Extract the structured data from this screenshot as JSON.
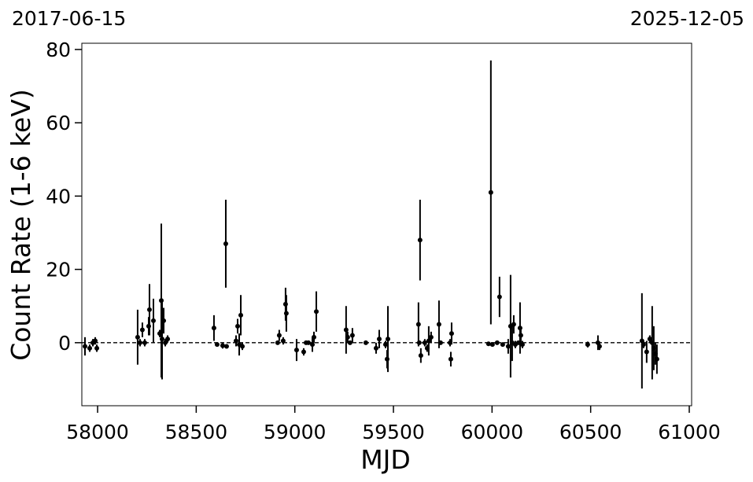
{
  "chart_data": {
    "type": "errorbar",
    "date_start": "2017-06-15",
    "date_end": "2025-12-05",
    "xlabel": "MJD",
    "ylabel": "Count Rate (1-6 keV)",
    "color": "#000000",
    "x": [
      57936,
      57960,
      57976,
      57988,
      57996,
      58203,
      58215,
      58227,
      58239,
      58259,
      58263,
      58283,
      58315,
      58323,
      58327,
      58335,
      58343,
      58355,
      58590,
      58606,
      58634,
      58650,
      58654,
      58702,
      58710,
      58718,
      58726,
      58734,
      58913,
      58921,
      58941,
      58953,
      58957,
      59009,
      59045,
      59057,
      59069,
      59089,
      59097,
      59109,
      59260,
      59268,
      59280,
      59292,
      59360,
      59412,
      59428,
      59460,
      59468,
      59472,
      59627,
      59631,
      59635,
      59639,
      59659,
      59671,
      59679,
      59691,
      59731,
      59739,
      59787,
      59791,
      59795,
      59982,
      59994,
      60002,
      60026,
      60038,
      60054,
      60082,
      60094,
      60102,
      60110,
      60118,
      60134,
      60142,
      60146,
      60154,
      60485,
      60537,
      60545,
      60760,
      60768,
      60784,
      60800,
      60812,
      60820,
      60828,
      60836
    ],
    "values": [
      -1,
      -1.5,
      0,
      0.5,
      -1.5,
      1.5,
      0,
      3.5,
      0,
      4.5,
      9,
      6,
      2.5,
      11.5,
      1,
      6,
      0,
      1,
      4,
      -0.5,
      -0.8,
      27,
      -1,
      0.5,
      4.5,
      -0.5,
      7.5,
      -1,
      0,
      2,
      0.5,
      10.5,
      8,
      -2,
      -2.5,
      0,
      0,
      -0.5,
      1.5,
      8.5,
      3.5,
      1.5,
      0,
      2,
      0,
      -1.5,
      1,
      -0.5,
      -4.5,
      1,
      5,
      0,
      28,
      -3.5,
      0,
      -1.5,
      0.5,
      1.5,
      5,
      0,
      0,
      -4.5,
      2.5,
      -0.3,
      41,
      -0.5,
      0,
      12.5,
      -0.5,
      -1,
      4.5,
      0,
      5,
      -0.5,
      0,
      4,
      2,
      -0.5,
      -0.5,
      0,
      -1,
      0.5,
      -0.5,
      -2.5,
      1,
      0,
      -1.5,
      -3,
      -4.5
    ],
    "errors": [
      2.5,
      1,
      1,
      1,
      1,
      7.5,
      1,
      2,
      1,
      2.5,
      7,
      6,
      1,
      21,
      11,
      3.5,
      1,
      1,
      3.5,
      0.5,
      0.8,
      12,
      0.5,
      1.5,
      2,
      3,
      5.5,
      1,
      0.5,
      1.5,
      1,
      4.5,
      5,
      3,
      1,
      0.5,
      0.5,
      2,
      1.5,
      5.5,
      6.5,
      1.5,
      0.5,
      2,
      0.5,
      1.5,
      2.5,
      1,
      2.5,
      9,
      6,
      0.5,
      11,
      2,
      1,
      1,
      4,
      1.5,
      6.5,
      0.5,
      1,
      2,
      3,
      0.5,
      36,
      0.5,
      0.5,
      5.5,
      0.5,
      2,
      14,
      5,
      2.5,
      1,
      0.5,
      7,
      2,
      1,
      0.8,
      2,
      1,
      13,
      1,
      3,
      1,
      10,
      6,
      3,
      4
    ],
    "reference_line": 0,
    "xlim": [
      57920,
      61012
    ],
    "ylim": [
      -17.2,
      81.7
    ],
    "xticks": [
      58000,
      58500,
      59000,
      59500,
      60000,
      60500,
      61000
    ],
    "yticks": [
      0,
      20,
      40,
      60,
      80
    ]
  }
}
